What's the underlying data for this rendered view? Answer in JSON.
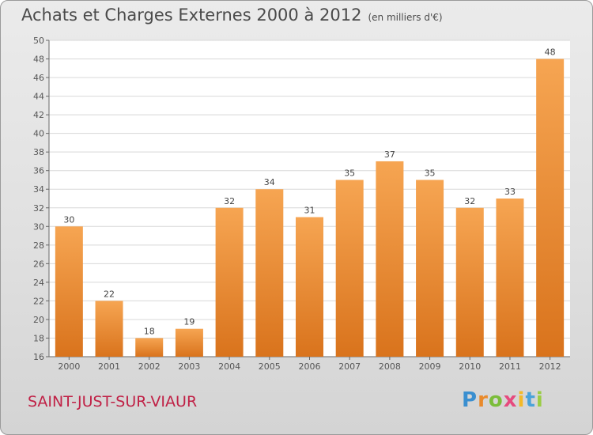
{
  "chart_data": {
    "type": "bar",
    "title": "Achats et Charges Externes 2000 à 2012",
    "subtitle": "(en milliers d'€)",
    "categories": [
      "2000",
      "2001",
      "2002",
      "2003",
      "2004",
      "2005",
      "2006",
      "2007",
      "2008",
      "2009",
      "2010",
      "2011",
      "2012"
    ],
    "values": [
      30,
      22,
      18,
      19,
      32,
      34,
      31,
      35,
      37,
      35,
      32,
      33,
      48
    ],
    "ylim": [
      16,
      50
    ],
    "yticks": [
      16,
      18,
      20,
      22,
      24,
      26,
      28,
      30,
      32,
      34,
      36,
      38,
      40,
      42,
      44,
      46,
      48,
      50
    ],
    "grid": true,
    "bar_color_top": "#f6a552",
    "bar_color_bottom": "#d9731c"
  },
  "footer": {
    "commune": "SAINT-JUST-SUR-VIAUR"
  },
  "logo": {
    "letters": [
      "P",
      "r",
      "o",
      "x",
      "i",
      "t",
      "i"
    ],
    "colors": [
      "#3a8fd0",
      "#e98a2b",
      "#7bbd3a",
      "#e64a7e",
      "#f3b928",
      "#4aa3d9",
      "#9acd44"
    ]
  }
}
